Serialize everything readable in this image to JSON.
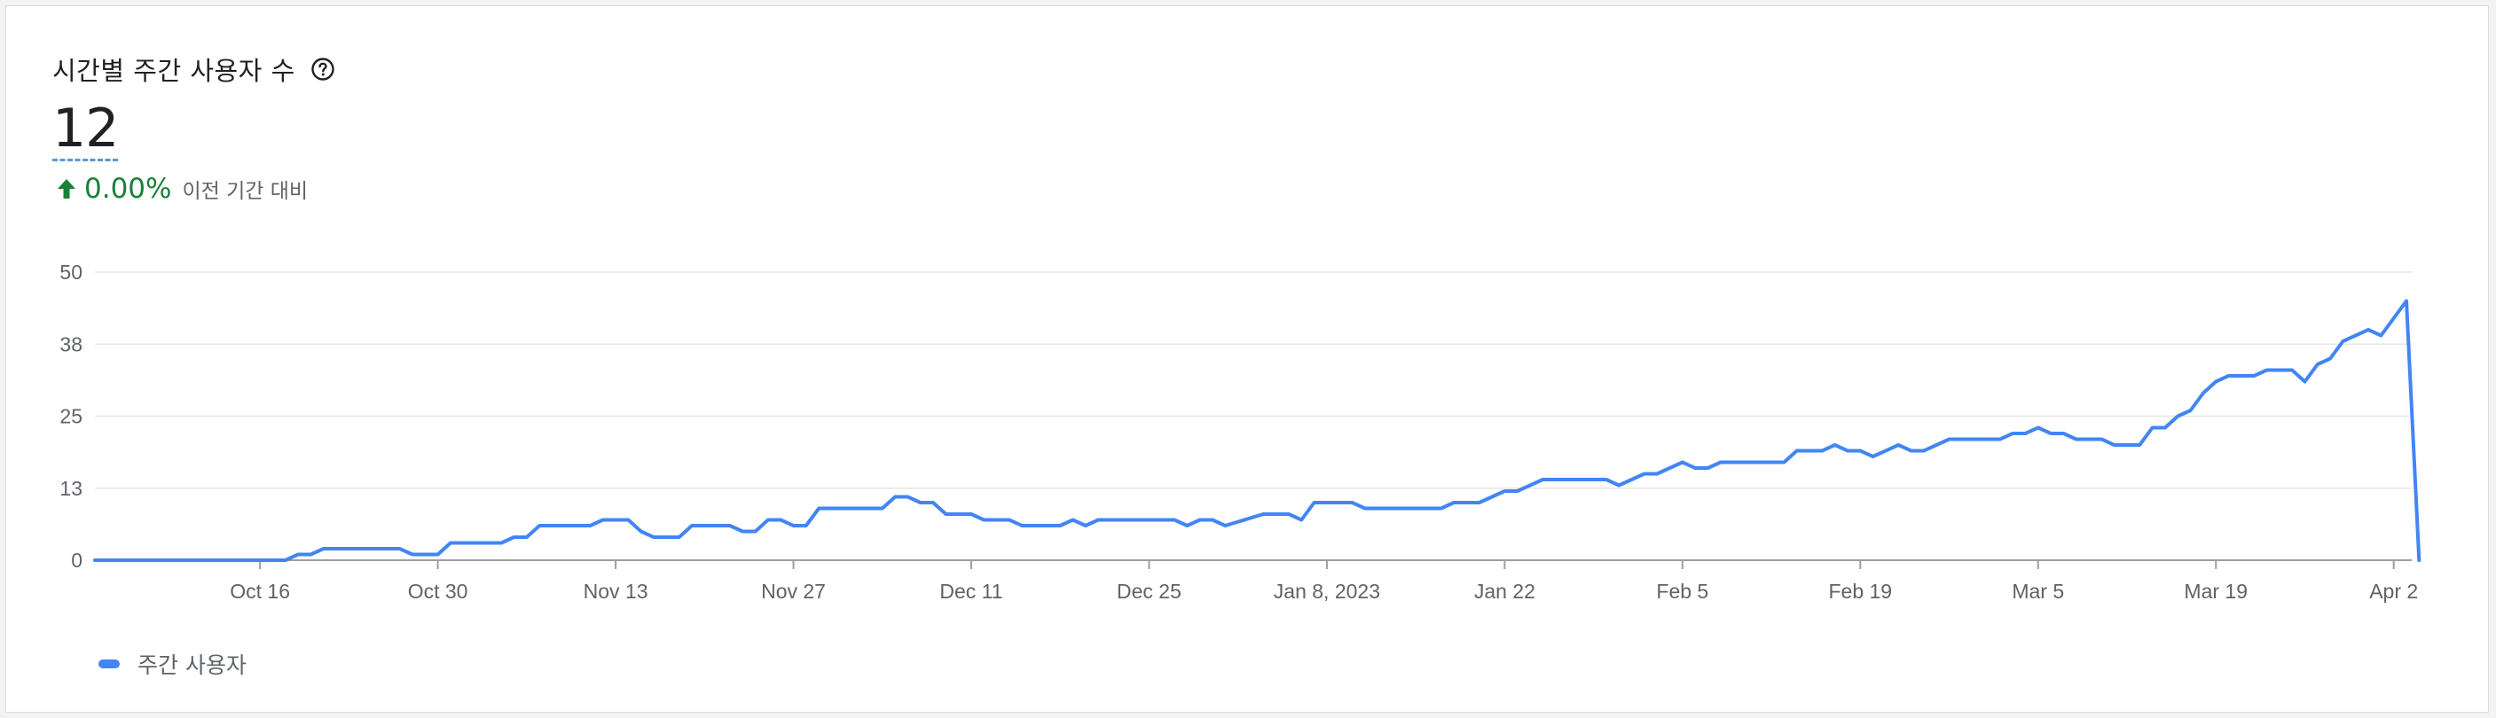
{
  "card": {
    "title": "시간별 주간 사용자 수",
    "help_icon": "help-circle-icon",
    "value": "12",
    "delta": "0.00%",
    "delta_icon": "arrow-up-icon",
    "delta_label": "이전 기간 대비"
  },
  "colors": {
    "line": "#4285f4",
    "positive": "#188038",
    "grid": "#e6e6e6",
    "axis": "#9e9e9e",
    "tick_text": "#5f6368"
  },
  "chart_data": {
    "type": "line",
    "title": "시간별 주간 사용자 수",
    "xlabel": "",
    "ylabel": "",
    "x_range": [
      "2022-10-03",
      "2023-04-03"
    ],
    "ylim": [
      0,
      50
    ],
    "y_ticks": [
      {
        "value": 0,
        "label": "0"
      },
      {
        "value": 12.5,
        "label": "13"
      },
      {
        "value": 25,
        "label": "25"
      },
      {
        "value": 37.5,
        "label": "38"
      },
      {
        "value": 50,
        "label": "50"
      }
    ],
    "x_ticks": [
      {
        "date": "2022-10-16",
        "label": "Oct 16"
      },
      {
        "date": "2022-10-30",
        "label": "Oct 30"
      },
      {
        "date": "2022-11-13",
        "label": "Nov 13"
      },
      {
        "date": "2022-11-27",
        "label": "Nov 27"
      },
      {
        "date": "2022-12-11",
        "label": "Dec 11"
      },
      {
        "date": "2022-12-25",
        "label": "Dec 25"
      },
      {
        "date": "2023-01-08",
        "label": "Jan 8, 2023"
      },
      {
        "date": "2023-01-22",
        "label": "Jan 22"
      },
      {
        "date": "2023-02-05",
        "label": "Feb 5"
      },
      {
        "date": "2023-02-19",
        "label": "Feb 19"
      },
      {
        "date": "2023-03-05",
        "label": "Mar 5"
      },
      {
        "date": "2023-03-19",
        "label": "Mar 19"
      },
      {
        "date": "2023-04-02",
        "label": "Apr 2"
      }
    ],
    "grid": true,
    "legend": "bottom-left",
    "series": [
      {
        "name": "주간 사용자",
        "points": [
          [
            "2022-10-03",
            0
          ],
          [
            "2022-10-18",
            0
          ],
          [
            "2022-10-19",
            1
          ],
          [
            "2022-10-20",
            1
          ],
          [
            "2022-10-21",
            2
          ],
          [
            "2022-10-27",
            2
          ],
          [
            "2022-10-28",
            1
          ],
          [
            "2022-10-30",
            1
          ],
          [
            "2022-10-31",
            3
          ],
          [
            "2022-11-04",
            3
          ],
          [
            "2022-11-05",
            4
          ],
          [
            "2022-11-06",
            4
          ],
          [
            "2022-11-07",
            6
          ],
          [
            "2022-11-11",
            6
          ],
          [
            "2022-11-12",
            7
          ],
          [
            "2022-11-14",
            7
          ],
          [
            "2022-11-15",
            5
          ],
          [
            "2022-11-16",
            4
          ],
          [
            "2022-11-18",
            4
          ],
          [
            "2022-11-19",
            6
          ],
          [
            "2022-11-22",
            6
          ],
          [
            "2022-11-23",
            5
          ],
          [
            "2022-11-24",
            5
          ],
          [
            "2022-11-25",
            7
          ],
          [
            "2022-11-26",
            7
          ],
          [
            "2022-11-27",
            6
          ],
          [
            "2022-11-28",
            6
          ],
          [
            "2022-11-29",
            9
          ],
          [
            "2022-12-04",
            9
          ],
          [
            "2022-12-05",
            11
          ],
          [
            "2022-12-06",
            11
          ],
          [
            "2022-12-07",
            10
          ],
          [
            "2022-12-08",
            10
          ],
          [
            "2022-12-09",
            8
          ],
          [
            "2022-12-11",
            8
          ],
          [
            "2022-12-12",
            7
          ],
          [
            "2022-12-14",
            7
          ],
          [
            "2022-12-15",
            6
          ],
          [
            "2022-12-18",
            6
          ],
          [
            "2022-12-19",
            7
          ],
          [
            "2022-12-20",
            6
          ],
          [
            "2022-12-21",
            7
          ],
          [
            "2022-12-27",
            7
          ],
          [
            "2022-12-28",
            6
          ],
          [
            "2022-12-29",
            7
          ],
          [
            "2022-12-30",
            7
          ],
          [
            "2022-12-31",
            6
          ],
          [
            "2023-01-03",
            8
          ],
          [
            "2023-01-05",
            8
          ],
          [
            "2023-01-06",
            7
          ],
          [
            "2023-01-07",
            10
          ],
          [
            "2023-01-10",
            10
          ],
          [
            "2023-01-11",
            9
          ],
          [
            "2023-01-17",
            9
          ],
          [
            "2023-01-18",
            10
          ],
          [
            "2023-01-20",
            10
          ],
          [
            "2023-01-22",
            12
          ],
          [
            "2023-01-23",
            12
          ],
          [
            "2023-01-25",
            14
          ],
          [
            "2023-01-30",
            14
          ],
          [
            "2023-01-31",
            13
          ],
          [
            "2023-02-02",
            15
          ],
          [
            "2023-02-03",
            15
          ],
          [
            "2023-02-05",
            17
          ],
          [
            "2023-02-06",
            16
          ],
          [
            "2023-02-07",
            16
          ],
          [
            "2023-02-08",
            17
          ],
          [
            "2023-02-13",
            17
          ],
          [
            "2023-02-14",
            19
          ],
          [
            "2023-02-16",
            19
          ],
          [
            "2023-02-17",
            20
          ],
          [
            "2023-02-18",
            19
          ],
          [
            "2023-02-19",
            19
          ],
          [
            "2023-02-20",
            18
          ],
          [
            "2023-02-22",
            20
          ],
          [
            "2023-02-23",
            19
          ],
          [
            "2023-02-24",
            19
          ],
          [
            "2023-02-26",
            21
          ],
          [
            "2023-03-02",
            21
          ],
          [
            "2023-03-03",
            22
          ],
          [
            "2023-03-04",
            22
          ],
          [
            "2023-03-05",
            23
          ],
          [
            "2023-03-06",
            22
          ],
          [
            "2023-03-07",
            22
          ],
          [
            "2023-03-08",
            21
          ],
          [
            "2023-03-10",
            21
          ],
          [
            "2023-03-11",
            20
          ],
          [
            "2023-03-13",
            20
          ],
          [
            "2023-03-14",
            23
          ],
          [
            "2023-03-15",
            23
          ],
          [
            "2023-03-16",
            25
          ],
          [
            "2023-03-17",
            26
          ],
          [
            "2023-03-18",
            29
          ],
          [
            "2023-03-19",
            31
          ],
          [
            "2023-03-20",
            32
          ],
          [
            "2023-03-22",
            32
          ],
          [
            "2023-03-23",
            33
          ],
          [
            "2023-03-25",
            33
          ],
          [
            "2023-03-26",
            31
          ],
          [
            "2023-03-27",
            34
          ],
          [
            "2023-03-28",
            35
          ],
          [
            "2023-03-29",
            38
          ],
          [
            "2023-03-30",
            39
          ],
          [
            "2023-03-31",
            40
          ],
          [
            "2023-04-01",
            39
          ],
          [
            "2023-04-03",
            45
          ],
          [
            "2023-04-04",
            0
          ]
        ]
      }
    ]
  }
}
